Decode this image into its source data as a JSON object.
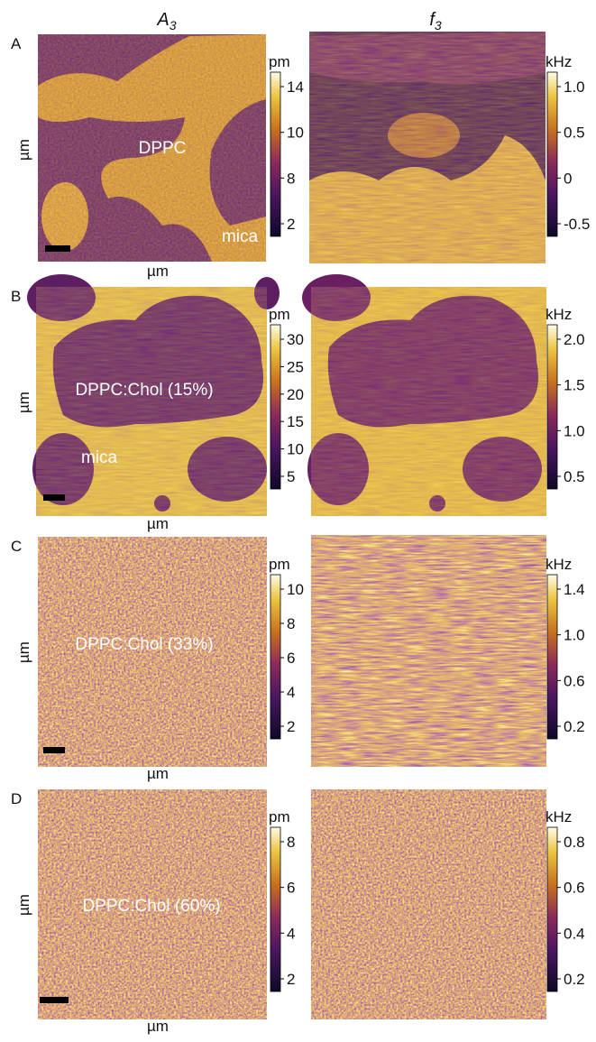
{
  "columns": [
    {
      "symbol": "A",
      "subscript": "3"
    },
    {
      "symbol": "f",
      "subscript": "3"
    }
  ],
  "panels": [
    {
      "letter": "A",
      "y_axis": "µm",
      "x_axis": "µm",
      "labels": [
        "DPPC",
        "mica"
      ],
      "amplitude_scale": {
        "unit": "pm",
        "ticks": [
          "14",
          "10",
          "8",
          "2"
        ]
      },
      "frequency_scale": {
        "unit": "kHz",
        "ticks": [
          "1.0",
          "0.5",
          "0",
          "-0.5"
        ]
      }
    },
    {
      "letter": "B",
      "y_axis": "µm",
      "x_axis": "µm",
      "labels": [
        "DPPC:Chol (15%)",
        "mica"
      ],
      "amplitude_scale": {
        "unit": "pm",
        "ticks": [
          "30",
          "25",
          "20",
          "15",
          "10",
          "5"
        ]
      },
      "frequency_scale": {
        "unit": "kHz",
        "ticks": [
          "2.0",
          "1.5",
          "1.0",
          "0.5"
        ]
      }
    },
    {
      "letter": "C",
      "y_axis": "µm",
      "x_axis": "µm",
      "labels": [
        "DPPC:Chol (33%)"
      ],
      "amplitude_scale": {
        "unit": "pm",
        "ticks": [
          "10",
          "8",
          "6",
          "4",
          "2"
        ]
      },
      "frequency_scale": {
        "unit": "kHz",
        "ticks": [
          "1.4",
          "1.0",
          "0.6",
          "0.2"
        ]
      }
    },
    {
      "letter": "D",
      "y_axis": "µm",
      "x_axis": "µm",
      "labels": [
        "DPPC:Chol (60%)"
      ],
      "amplitude_scale": {
        "unit": "pm",
        "ticks": [
          "8",
          "6",
          "4",
          "2"
        ]
      },
      "frequency_scale": {
        "unit": "kHz",
        "ticks": [
          "0.8",
          "0.6",
          "0.4",
          "0.2"
        ]
      }
    }
  ]
}
